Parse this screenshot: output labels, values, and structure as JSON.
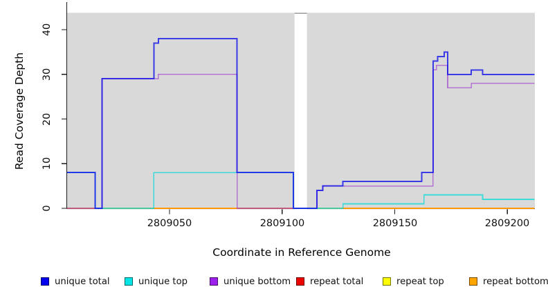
{
  "chart_data": {
    "type": "line",
    "subtype": "step",
    "title": "",
    "xlabel": "Coordinate in Reference Genome",
    "ylabel": "Read Coverage Depth",
    "xlim": [
      2809004.5,
      2809212
    ],
    "ylim": [
      0,
      43.8
    ],
    "x_ticks": [
      2809050,
      2809100,
      2809150,
      2809200
    ],
    "y_ticks": [
      0,
      10,
      20,
      30,
      40
    ],
    "grid": false,
    "panel_bg": "#d9d9d9",
    "axis_color": "#1a1a1a",
    "gap_region": {
      "start": 2809105.5,
      "end": 2809111,
      "color": "#ffffff",
      "top_edge_color": "#9b9b9b"
    },
    "legend_position": "bottom",
    "draw_order": [
      4,
      3,
      5,
      2,
      1,
      0
    ],
    "series": [
      {
        "id": "unique-total",
        "name": "unique total",
        "swatch": "#0000ee",
        "stroke": "#1212e8",
        "opacity": 0.8,
        "width": 2,
        "steps": [
          [
            2809004.5,
            8
          ],
          [
            2809017,
            0
          ],
          [
            2809020,
            29
          ],
          [
            2809043,
            37
          ],
          [
            2809045,
            38
          ],
          [
            2809080,
            8
          ],
          [
            2809105,
            0
          ],
          [
            2809115.5,
            4
          ],
          [
            2809118,
            5
          ],
          [
            2809127,
            6
          ],
          [
            2809162,
            8
          ],
          [
            2809167,
            33
          ],
          [
            2809169,
            34
          ],
          [
            2809172,
            35
          ],
          [
            2809173.5,
            30
          ],
          [
            2809184,
            31
          ],
          [
            2809189,
            30
          ]
        ]
      },
      {
        "id": "unique-top",
        "name": "unique top",
        "swatch": "#00e5e5",
        "stroke": "#00dada",
        "opacity": 0.72,
        "width": 1.7,
        "steps": [
          [
            2809004.5,
            8
          ],
          [
            2809017,
            0
          ],
          [
            2809043,
            8
          ],
          [
            2809105,
            0
          ],
          [
            2809127,
            1
          ],
          [
            2809163,
            3
          ],
          [
            2809189,
            2
          ]
        ]
      },
      {
        "id": "unique-bottom",
        "name": "unique bottom",
        "swatch": "#9d20ec",
        "stroke": "#9933cc",
        "opacity": 0.62,
        "width": 1.7,
        "steps": [
          [
            2809004.5,
            0
          ],
          [
            2809020,
            29
          ],
          [
            2809045,
            30
          ],
          [
            2809080,
            0
          ],
          [
            2809115.5,
            4
          ],
          [
            2809118,
            5
          ],
          [
            2809167,
            31
          ],
          [
            2809168.5,
            32
          ],
          [
            2809173.5,
            27
          ],
          [
            2809184,
            28
          ]
        ]
      },
      {
        "id": "repeat-total",
        "name": "repeat total",
        "swatch": "#ee0000",
        "stroke": "#e02020",
        "opacity": 0.6,
        "width": 1.5,
        "steps": [
          [
            2809004.5,
            0
          ]
        ]
      },
      {
        "id": "repeat-top",
        "name": "repeat top",
        "swatch": "#ffff00",
        "stroke": "#eeee00",
        "opacity": 0.75,
        "width": 1.5,
        "steps": [
          [
            2809004.5,
            0
          ]
        ]
      },
      {
        "id": "repeat-bottom",
        "name": "repeat bottom",
        "swatch": "#ffa500",
        "stroke": "#ff9900",
        "opacity": 0.95,
        "width": 1.6,
        "steps": [
          [
            2809004.5,
            0
          ]
        ]
      }
    ]
  }
}
